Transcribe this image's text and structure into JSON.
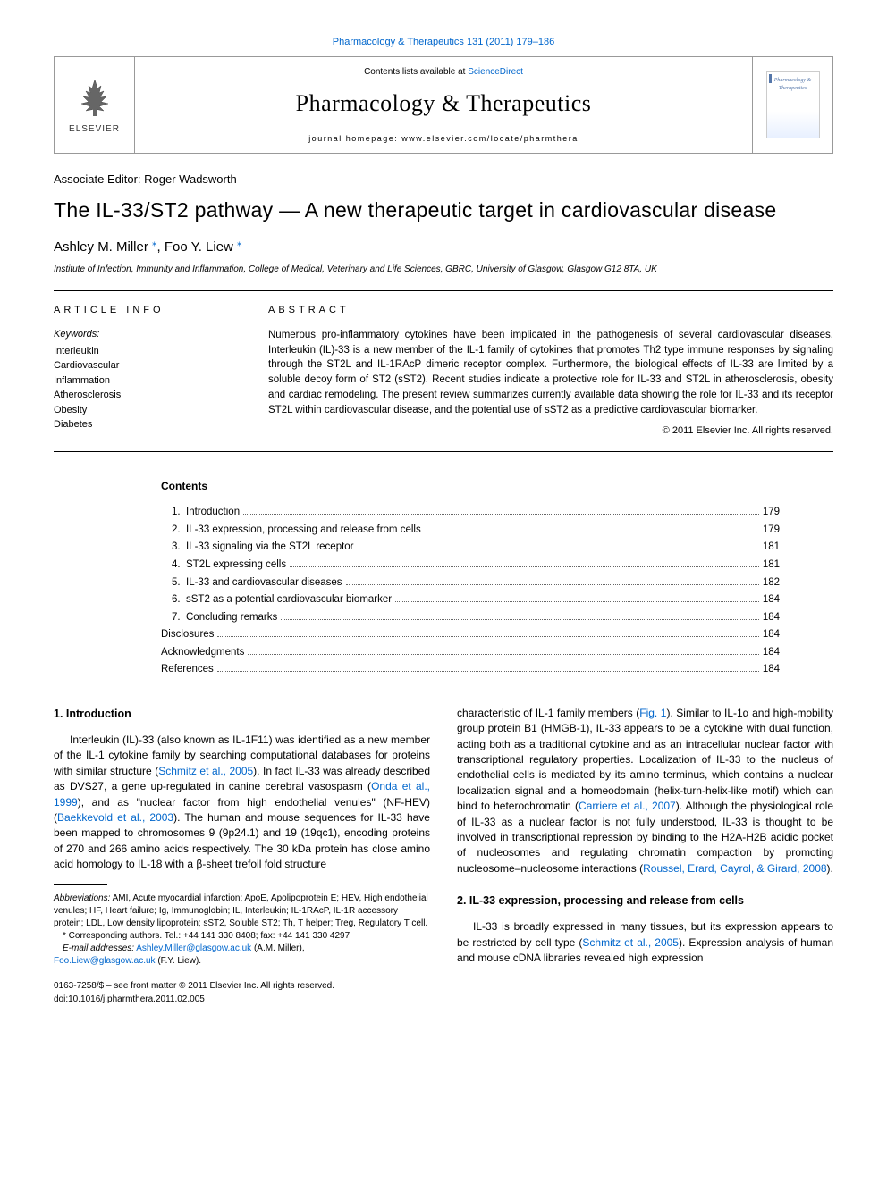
{
  "top": {
    "citation": "Pharmacology & Therapeutics 131 (2011) 179–186",
    "contents_prefix": "Contents lists available at ",
    "contents_link": "ScienceDirect",
    "journal": "Pharmacology & Therapeutics",
    "homepage": "journal homepage: www.elsevier.com/locate/pharmthera",
    "publisher": "ELSEVIER",
    "thumb_text": "Pharmacology\n&\nTherapeutics"
  },
  "article": {
    "editor_line": "Associate Editor: Roger Wadsworth",
    "title": "The IL-33/ST2 pathway — A new therapeutic target in cardiovascular disease",
    "authors_html": "Ashley M. Miller *, Foo Y. Liew *",
    "author1": "Ashley M. Miller",
    "author2": "Foo Y. Liew",
    "affiliation": "Institute of Infection, Immunity and Inflammation, College of Medical, Veterinary and Life Sciences, GBRC, University of Glasgow, Glasgow G12 8TA, UK"
  },
  "info": {
    "left_title": "ARTICLE INFO",
    "keywords_label": "Keywords:",
    "keywords": [
      "Interleukin",
      "Cardiovascular",
      "Inflammation",
      "Atherosclerosis",
      "Obesity",
      "Diabetes"
    ],
    "abstract_title": "ABSTRACT",
    "abstract": "Numerous pro-inflammatory cytokines have been implicated in the pathogenesis of several cardiovascular diseases. Interleukin (IL)-33 is a new member of the IL-1 family of cytokines that promotes Th2 type immune responses by signaling through the ST2L and IL-1RAcP dimeric receptor complex. Furthermore, the biological effects of IL-33 are limited by a soluble decoy form of ST2 (sST2). Recent studies indicate a protective role for IL-33 and ST2L in atherosclerosis, obesity and cardiac remodeling. The present review summarizes currently available data showing the role for IL-33 and its receptor ST2L within cardiovascular disease, and the potential use of sST2 as a predictive cardiovascular biomarker.",
    "copyright": "© 2011 Elsevier Inc. All rights reserved."
  },
  "contents": {
    "title": "Contents",
    "items": [
      {
        "num": "1.",
        "label": "Introduction",
        "page": "179"
      },
      {
        "num": "2.",
        "label": "IL-33 expression, processing and release from cells",
        "page": "179"
      },
      {
        "num": "3.",
        "label": "IL-33 signaling via the ST2L receptor",
        "page": "181"
      },
      {
        "num": "4.",
        "label": "ST2L expressing cells",
        "page": "181"
      },
      {
        "num": "5.",
        "label": "IL-33 and cardiovascular diseases",
        "page": "182"
      },
      {
        "num": "6.",
        "label": "sST2 as a potential cardiovascular biomarker",
        "page": "184"
      },
      {
        "num": "7.",
        "label": "Concluding remarks",
        "page": "184"
      },
      {
        "num": "",
        "label": "Disclosures",
        "page": "184"
      },
      {
        "num": "",
        "label": "Acknowledgments",
        "page": "184"
      },
      {
        "num": "",
        "label": "References",
        "page": "184"
      }
    ]
  },
  "body": {
    "h1": "1. Introduction",
    "p1a": "Interleukin (IL)-33 (also known as IL-1F11) was identified as a new member of the IL-1 cytokine family by searching computational databases for proteins with similar structure (",
    "p1a_ref1": "Schmitz et al., 2005",
    "p1b": "). In fact IL-33 was already described as DVS27, a gene up-regulated in canine cerebral vasospasm (",
    "p1b_ref": "Onda et al., 1999",
    "p1c": "), and as \"nuclear factor from high endothelial venules\" (NF-HEV) (",
    "p1c_ref": "Baekkevold et al., 2003",
    "p1d": "). The human and mouse sequences for IL-33 have been mapped to chromosomes 9 (9p24.1) and 19 (19qc1), encoding proteins of 270 and 266 amino acids respectively. The 30 kDa protein has close amino acid homology to IL-18 with a β-sheet trefoil fold structure",
    "p2a": "characteristic of IL-1 family members (",
    "p2a_ref": "Fig. 1",
    "p2b": "). Similar to IL-1α and high-mobility group protein B1 (HMGB-1), IL-33 appears to be a cytokine with dual function, acting both as a traditional cytokine and as an intracellular nuclear factor with transcriptional regulatory properties. Localization of IL-33 to the nucleus of endothelial cells is mediated by its amino terminus, which contains a nuclear localization signal and a homeodomain (helix-turn-helix-like motif) which can bind to heterochromatin (",
    "p2b_ref": "Carriere et al., 2007",
    "p2c": "). Although the physiological role of IL-33 as a nuclear factor is not fully understood, IL-33 is thought to be involved in transcriptional repression by binding to the H2A-H2B acidic pocket of nucleosomes and regulating chromatin compaction by promoting nucleosome–nucleosome interactions (",
    "p2c_ref": "Roussel, Erard, Cayrol, & Girard, 2008",
    "p2d": ").",
    "h2": "2. IL-33 expression, processing and release from cells",
    "p3a": "IL-33 is broadly expressed in many tissues, but its expression appears to be restricted by cell type (",
    "p3a_ref": "Schmitz et al., 2005",
    "p3b": "). Expression analysis of human and mouse cDNA libraries revealed high expression"
  },
  "footnotes": {
    "abbrev_label": "Abbreviations:",
    "abbrev": " AMI, Acute myocardial infarction; ApoE, Apolipoprotein E; HEV, High endothelial venules; HF, Heart failure; Ig, Immunoglobin; IL, Interleukin; IL-1RAcP, IL-1R accessory protein; LDL, Low density lipoprotein; sST2, Soluble ST2; Th, T helper; Treg, Regulatory T cell.",
    "corr": "* Corresponding authors. Tel.: +44 141 330 8408; fax: +44 141 330 4297.",
    "email_label": "E-mail addresses:",
    "email1": "Ashley.Miller@glasgow.ac.uk",
    "email1_suffix": " (A.M. Miller),",
    "email2": "Foo.Liew@glasgow.ac.uk",
    "email2_suffix": " (F.Y. Liew).",
    "front_matter": "0163-7258/$ – see front matter © 2011 Elsevier Inc. All rights reserved.",
    "doi": "doi:10.1016/j.pharmthera.2011.02.005"
  },
  "colors": {
    "link": "#0066cc",
    "text": "#000000",
    "border": "#999999"
  }
}
